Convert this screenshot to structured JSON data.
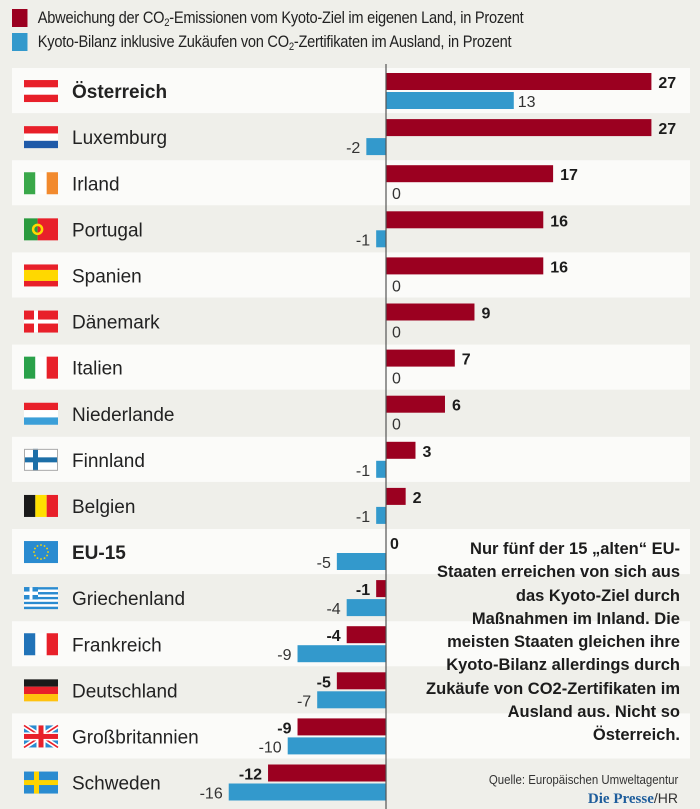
{
  "legend": [
    {
      "pre": "Abweichung der CO",
      "sub": "2",
      "post": "-Emissionen vom Kyoto-Ziel im eigenen Land, in Prozent",
      "color": "#9b0020"
    },
    {
      "pre": "Kyoto-Bilanz inklusive Zukäufen von CO",
      "sub": "2",
      "post": "-Zertifikaten im Ausland, in Prozent",
      "color": "#3399cc"
    }
  ],
  "chart_data": {
    "type": "bar",
    "orientation": "horizontal",
    "title": "",
    "categories": [
      "Österreich",
      "Luxemburg",
      "Irland",
      "Portugal",
      "Spanien",
      "Dänemark",
      "Italien",
      "Niederlande",
      "Finnland",
      "Belgien",
      "EU-15",
      "Griechenland",
      "Frankreich",
      "Deutschland",
      "Großbritannien",
      "Schweden"
    ],
    "bold_categories": [
      "Österreich",
      "EU-15"
    ],
    "flags": [
      "austria-flag",
      "luxembourg-flag",
      "ireland-flag",
      "portugal-flag",
      "spain-flag",
      "denmark-flag",
      "italy-flag",
      "netherlands-flag",
      "finland-flag",
      "belgium-flag",
      "eu-flag",
      "greece-flag",
      "france-flag",
      "germany-flag",
      "uk-flag",
      "sweden-flag"
    ],
    "series": [
      {
        "name": "Abweichung der CO2-Emissionen vom Kyoto-Ziel im eigenen Land, in Prozent",
        "color": "#9b0020",
        "values": [
          27,
          27,
          17,
          16,
          16,
          9,
          7,
          6,
          3,
          2,
          0,
          -1,
          -4,
          -5,
          -9,
          -12
        ]
      },
      {
        "name": "Kyoto-Bilanz inklusive Zukäufen von CO2-Zertifikaten im Ausland, in Prozent",
        "color": "#3399cc",
        "values": [
          13,
          -2,
          0,
          -1,
          0,
          0,
          0,
          0,
          -1,
          -1,
          -5,
          -4,
          -9,
          -7,
          -10,
          -16
        ]
      }
    ],
    "xlim": [
      -16,
      27
    ],
    "xlabel": "",
    "ylabel": "",
    "grid": false,
    "legend_position": "top"
  },
  "note": "Nur fünf der 15 „alten“ EU-Staaten erreichen von sich aus das Kyoto-Ziel durch Maßnahmen im Inland. Die meisten Staaten gleichen ihre Kyoto-Bilanz allerdings durch Zukäufe von CO2-Zertifikaten im Ausland aus. Nicht so Österreich.",
  "source": "Quelle: Europäischen Umweltagentur",
  "credit": {
    "brand": "Die Presse",
    "separator": "/",
    "author": "HR"
  }
}
